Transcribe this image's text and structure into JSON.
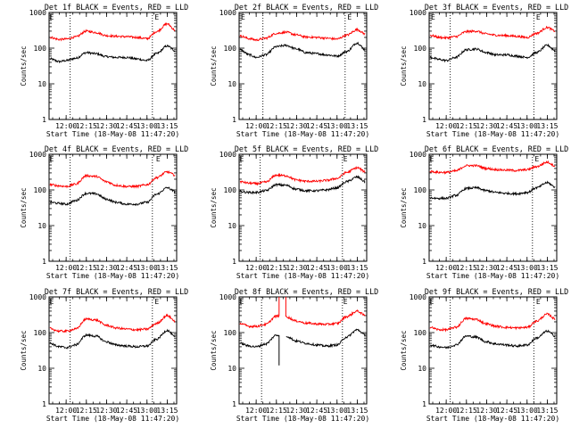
{
  "figure": {
    "xlabel": "Start Time (18-May-08 11:47:20)",
    "ylabel": "Counts/sec",
    "colors": {
      "events": "#000000",
      "lld": "#ff0000",
      "axes": "#000000",
      "background": "#ffffff"
    }
  },
  "chart_data": [
    {
      "type": "line",
      "title": "Det 1f BLACK = Events, RED = LLD",
      "xlabel": "Start Time (18-May-08 11:47:20)",
      "ylabel": "Counts/sec",
      "yscale": "log",
      "ylim": [
        1,
        1000
      ],
      "x_range": [
        "11:47:20",
        "13:22"
      ],
      "xticks": [
        "12:00",
        "12:15",
        "12:30",
        "12:45",
        "13:00",
        "13:15"
      ],
      "yticks": [
        "1",
        "10",
        "100",
        "1000"
      ],
      "vlines": [
        "12:03",
        "13:04"
      ],
      "markers": [
        {
          "label": "E",
          "x": "11:47"
        },
        {
          "label": "E",
          "x": "13:05"
        }
      ],
      "x": [
        "11:48",
        "11:55",
        "12:00",
        "12:07",
        "12:15",
        "12:22",
        "12:30",
        "12:37",
        "12:45",
        "12:52",
        "13:00",
        "13:07",
        "13:15",
        "13:21"
      ],
      "series": [
        {
          "name": "Events",
          "color": "#000000",
          "values": [
            50,
            42,
            45,
            52,
            75,
            70,
            58,
            55,
            55,
            50,
            45,
            70,
            115,
            85
          ]
        },
        {
          "name": "LLD",
          "color": "#ff0000",
          "values": [
            200,
            175,
            180,
            205,
            300,
            275,
            225,
            215,
            210,
            200,
            185,
            290,
            480,
            320
          ]
        }
      ]
    },
    {
      "type": "line",
      "title": "Det 2f BLACK = Events, RED = LLD",
      "xlabel": "Start Time (18-May-08 11:47:20)",
      "ylabel": "Counts/sec",
      "yscale": "log",
      "ylim": [
        1,
        1000
      ],
      "x_range": [
        "11:47:20",
        "13:22"
      ],
      "xticks": [
        "12:00",
        "12:15",
        "12:30",
        "12:45",
        "13:00",
        "13:15"
      ],
      "yticks": [
        "1",
        "10",
        "100",
        "1000"
      ],
      "vlines": [
        "12:05",
        "13:06"
      ],
      "markers": [
        {
          "label": "E",
          "x": "11:48"
        },
        {
          "label": "E",
          "x": "13:07"
        }
      ],
      "x": [
        "11:48",
        "11:55",
        "12:00",
        "12:07",
        "12:15",
        "12:22",
        "12:30",
        "12:37",
        "12:45",
        "12:52",
        "13:00",
        "13:07",
        "13:15",
        "13:21"
      ],
      "series": [
        {
          "name": "Events",
          "color": "#000000",
          "values": [
            90,
            65,
            55,
            65,
            110,
            120,
            95,
            75,
            70,
            65,
            60,
            80,
            140,
            90
          ]
        },
        {
          "name": "LLD",
          "color": "#ff0000",
          "values": [
            220,
            185,
            170,
            190,
            260,
            280,
            235,
            205,
            200,
            190,
            180,
            230,
            330,
            250
          ]
        }
      ]
    },
    {
      "type": "line",
      "title": "Det 3f BLACK = Events, RED = LLD",
      "xlabel": "Start Time (18-May-08 11:47:20)",
      "ylabel": "Counts/sec",
      "yscale": "log",
      "ylim": [
        1,
        1000
      ],
      "x_range": [
        "11:47:20",
        "13:22"
      ],
      "xticks": [
        "12:00",
        "12:15",
        "12:30",
        "12:45",
        "13:00",
        "13:15"
      ],
      "yticks": [
        "1",
        "10",
        "100",
        "1000"
      ],
      "vlines": [
        "12:03",
        "13:05"
      ],
      "markers": [
        {
          "label": "E",
          "x": "11:48"
        },
        {
          "label": "E",
          "x": "13:06"
        }
      ],
      "x": [
        "11:48",
        "11:55",
        "12:00",
        "12:07",
        "12:15",
        "12:22",
        "12:30",
        "12:37",
        "12:45",
        "12:52",
        "13:00",
        "13:07",
        "13:15",
        "13:21"
      ],
      "series": [
        {
          "name": "Events",
          "color": "#000000",
          "values": [
            55,
            48,
            45,
            55,
            90,
            95,
            75,
            65,
            65,
            60,
            55,
            75,
            120,
            85
          ]
        },
        {
          "name": "LLD",
          "color": "#ff0000",
          "values": [
            230,
            200,
            195,
            210,
            290,
            300,
            250,
            230,
            225,
            215,
            200,
            260,
            380,
            300
          ]
        }
      ]
    },
    {
      "type": "line",
      "title": "Det 4f BLACK = Events, RED = LLD",
      "xlabel": "Start Time (18-May-08 11:47:20)",
      "ylabel": "Counts/sec",
      "yscale": "log",
      "ylim": [
        1,
        1000
      ],
      "x_range": [
        "11:47:20",
        "13:22"
      ],
      "xticks": [
        "12:00",
        "12:15",
        "12:30",
        "12:45",
        "13:00",
        "13:15"
      ],
      "yticks": [
        "1",
        "10",
        "100",
        "1000"
      ],
      "vlines": [
        "12:03",
        "13:04"
      ],
      "markers": [
        {
          "label": "E",
          "x": "11:47"
        },
        {
          "label": "E",
          "x": "13:06"
        }
      ],
      "x": [
        "11:48",
        "11:55",
        "12:00",
        "12:07",
        "12:15",
        "12:22",
        "12:30",
        "12:37",
        "12:45",
        "12:52",
        "13:00",
        "13:07",
        "13:15",
        "13:21"
      ],
      "series": [
        {
          "name": "Events",
          "color": "#000000",
          "values": [
            45,
            42,
            40,
            50,
            80,
            78,
            55,
            45,
            40,
            40,
            45,
            75,
            115,
            90
          ]
        },
        {
          "name": "LLD",
          "color": "#ff0000",
          "values": [
            140,
            130,
            125,
            145,
            250,
            240,
            170,
            135,
            125,
            125,
            140,
            220,
            320,
            260
          ]
        }
      ]
    },
    {
      "type": "line",
      "title": "Det 5f BLACK = Events, RED = LLD",
      "xlabel": "Start Time (18-May-08 11:47:20)",
      "ylabel": "Counts/sec",
      "yscale": "log",
      "ylim": [
        1,
        1000
      ],
      "x_range": [
        "11:47:20",
        "13:22"
      ],
      "xticks": [
        "12:00",
        "12:15",
        "12:30",
        "12:45",
        "13:00",
        "13:15"
      ],
      "yticks": [
        "1",
        "10",
        "100",
        "1000"
      ],
      "vlines": [
        "12:03",
        "13:04"
      ],
      "markers": [
        {
          "label": "E",
          "x": "11:47"
        },
        {
          "label": "E",
          "x": "13:04"
        }
      ],
      "x": [
        "11:48",
        "11:55",
        "12:00",
        "12:07",
        "12:15",
        "12:22",
        "12:30",
        "12:37",
        "12:45",
        "12:52",
        "13:00",
        "13:07",
        "13:15",
        "13:21"
      ],
      "series": [
        {
          "name": "Events",
          "color": "#000000",
          "values": [
            90,
            85,
            85,
            95,
            140,
            135,
            105,
            95,
            95,
            100,
            115,
            170,
            230,
            170
          ]
        },
        {
          "name": "LLD",
          "color": "#ff0000",
          "values": [
            170,
            155,
            150,
            165,
            260,
            250,
            190,
            175,
            175,
            185,
            210,
            310,
            420,
            320
          ]
        }
      ]
    },
    {
      "type": "line",
      "title": "Det 6f BLACK = Events, RED = LLD",
      "xlabel": "Start Time (18-May-08 11:47:20)",
      "ylabel": "Counts/sec",
      "yscale": "log",
      "ylim": [
        1,
        1000
      ],
      "x_range": [
        "11:47:20",
        "13:22"
      ],
      "xticks": [
        "12:00",
        "12:15",
        "12:30",
        "12:45",
        "13:00",
        "13:15"
      ],
      "yticks": [
        "1",
        "10",
        "100",
        "1000"
      ],
      "vlines": [
        "12:03",
        "13:04"
      ],
      "markers": [
        {
          "label": "E",
          "x": "11:47"
        },
        {
          "label": "E",
          "x": "13:05"
        }
      ],
      "x": [
        "11:48",
        "11:55",
        "12:00",
        "12:07",
        "12:15",
        "12:22",
        "12:30",
        "12:37",
        "12:45",
        "12:52",
        "13:00",
        "13:07",
        "13:15",
        "13:21"
      ],
      "series": [
        {
          "name": "Events",
          "color": "#000000",
          "values": [
            60,
            58,
            58,
            70,
            110,
            115,
            95,
            85,
            80,
            78,
            85,
            115,
            160,
            120
          ]
        },
        {
          "name": "LLD",
          "color": "#ff0000",
          "values": [
            330,
            310,
            310,
            340,
            480,
            480,
            400,
            370,
            360,
            350,
            370,
            450,
            600,
            470
          ]
        }
      ]
    },
    {
      "type": "line",
      "title": "Det 7f BLACK = Events, RED = LLD",
      "xlabel": "Start Time (18-May-08 11:47:20)",
      "ylabel": "Counts/sec",
      "yscale": "log",
      "ylim": [
        1,
        1000
      ],
      "x_range": [
        "11:47:20",
        "13:22"
      ],
      "xticks": [
        "12:00",
        "12:15",
        "12:30",
        "12:45",
        "13:00",
        "13:15"
      ],
      "yticks": [
        "1",
        "10",
        "100",
        "1000"
      ],
      "vlines": [
        "12:03",
        "13:04"
      ],
      "markers": [
        {
          "label": "E",
          "x": "11:47"
        },
        {
          "label": "E",
          "x": "13:05"
        }
      ],
      "x": [
        "11:48",
        "11:55",
        "12:00",
        "12:07",
        "12:15",
        "12:22",
        "12:30",
        "12:37",
        "12:45",
        "12:52",
        "13:00",
        "13:07",
        "13:15",
        "13:21"
      ],
      "series": [
        {
          "name": "Events",
          "color": "#000000",
          "values": [
            50,
            40,
            38,
            45,
            85,
            80,
            55,
            45,
            42,
            40,
            42,
            65,
            115,
            75
          ]
        },
        {
          "name": "LLD",
          "color": "#ff0000",
          "values": [
            130,
            110,
            110,
            125,
            240,
            225,
            160,
            135,
            125,
            120,
            125,
            180,
            300,
            210
          ]
        }
      ]
    },
    {
      "type": "line",
      "title": "Det 8f BLACK = Events, RED = LLD",
      "xlabel": "Start Time (18-May-08 11:47:20)",
      "ylabel": "Counts/sec",
      "yscale": "log",
      "ylim": [
        1,
        1000
      ],
      "x_range": [
        "11:47:20",
        "13:22"
      ],
      "xticks": [
        "12:00",
        "12:15",
        "12:30",
        "12:45",
        "13:00",
        "13:15"
      ],
      "yticks": [
        "1",
        "10",
        "100",
        "1000"
      ],
      "vlines": [
        "12:04",
        "13:04"
      ],
      "markers": [
        {
          "label": "E",
          "x": "11:47"
        },
        {
          "label": "E",
          "x": "13:04"
        }
      ],
      "x": [
        "11:48",
        "11:55",
        "12:00",
        "12:07",
        "12:15",
        "12:22",
        "12:30",
        "12:37",
        "12:45",
        "12:52",
        "13:00",
        "13:07",
        "13:15",
        "13:21"
      ],
      "series": [
        {
          "name": "Events",
          "color": "#000000",
          "values": [
            50,
            42,
            40,
            48,
            85,
            80,
            58,
            50,
            45,
            42,
            45,
            75,
            120,
            85
          ]
        },
        {
          "name": "LLD",
          "color": "#ff0000",
          "values": [
            180,
            150,
            150,
            170,
            290,
            280,
            210,
            185,
            175,
            170,
            180,
            280,
            400,
            300
          ]
        }
      ],
      "gaps": [
        {
          "from": "12:17",
          "to": "12:22",
          "events_min": 12,
          "lld_max": 1000
        }
      ]
    },
    {
      "type": "line",
      "title": "Det 9f BLACK = Events, RED = LLD",
      "xlabel": "Start Time (18-May-08 11:47:20)",
      "ylabel": "Counts/sec",
      "yscale": "log",
      "ylim": [
        1,
        1000
      ],
      "x_range": [
        "11:47:20",
        "13:22"
      ],
      "xticks": [
        "12:00",
        "12:15",
        "12:30",
        "12:45",
        "13:00",
        "13:15"
      ],
      "yticks": [
        "1",
        "10",
        "100",
        "1000"
      ],
      "vlines": [
        "12:03",
        "13:05"
      ],
      "markers": [
        {
          "label": "E",
          "x": "11:47"
        },
        {
          "label": "E",
          "x": "13:06"
        }
      ],
      "x": [
        "11:48",
        "11:55",
        "12:00",
        "12:07",
        "12:15",
        "12:22",
        "12:30",
        "12:37",
        "12:45",
        "12:52",
        "13:00",
        "13:07",
        "13:15",
        "13:21"
      ],
      "series": [
        {
          "name": "Events",
          "color": "#000000",
          "values": [
            45,
            40,
            38,
            45,
            80,
            75,
            55,
            48,
            45,
            42,
            45,
            70,
            110,
            80
          ]
        },
        {
          "name": "LLD",
          "color": "#ff0000",
          "values": [
            140,
            120,
            120,
            140,
            250,
            235,
            175,
            150,
            140,
            135,
            140,
            210,
            330,
            240
          ]
        }
      ]
    }
  ]
}
